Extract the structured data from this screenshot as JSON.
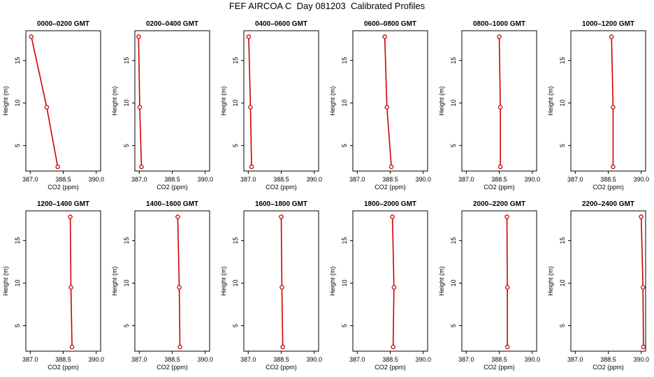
{
  "figure_title": "FEF AIRCOA C  Day 081203  Calibrated Profiles",
  "colors": {
    "profile_line": "#cc0000",
    "axis": "#000000"
  },
  "chart_data": [
    {
      "type": "line",
      "title": "0000–0200 GMT",
      "xlabel": "CO2 (ppm)",
      "ylabel": "Height (m)",
      "xlim": [
        386.8,
        390.2
      ],
      "ylim": [
        2,
        18.5
      ],
      "xticks": [
        "387.0",
        "388.5",
        "390.0"
      ],
      "yticks": [
        "5",
        "10",
        "15"
      ],
      "series": [
        {
          "x": [
            388.25,
            387.75,
            387.05
          ],
          "y": [
            2.5,
            9.5,
            17.8
          ]
        }
      ]
    },
    {
      "type": "line",
      "title": "0200–0400 GMT",
      "xlabel": "CO2 (ppm)",
      "ylabel": "Height (m)",
      "xlim": [
        386.8,
        390.2
      ],
      "ylim": [
        2,
        18.5
      ],
      "xticks": [
        "387.0",
        "388.5",
        "390.0"
      ],
      "yticks": [
        "5",
        "10",
        "15"
      ],
      "series": [
        {
          "x": [
            387.1,
            387.02,
            386.97
          ],
          "y": [
            2.5,
            9.5,
            17.8
          ]
        }
      ]
    },
    {
      "type": "line",
      "title": "0400–0600 GMT",
      "xlabel": "CO2 (ppm)",
      "ylabel": "Height (m)",
      "xlim": [
        386.8,
        390.2
      ],
      "ylim": [
        2,
        18.5
      ],
      "xticks": [
        "387.0",
        "388.5",
        "390.0"
      ],
      "yticks": [
        "5",
        "10",
        "15"
      ],
      "series": [
        {
          "x": [
            387.15,
            387.1,
            387.02
          ],
          "y": [
            2.5,
            9.5,
            17.8
          ]
        }
      ]
    },
    {
      "type": "line",
      "title": "0600–0800 GMT",
      "xlabel": "CO2 (ppm)",
      "ylabel": "Height (m)",
      "xlim": [
        386.8,
        390.2
      ],
      "ylim": [
        2,
        18.5
      ],
      "xticks": [
        "387.0",
        "388.5",
        "390.0"
      ],
      "yticks": [
        "5",
        "10",
        "15"
      ],
      "series": [
        {
          "x": [
            388.55,
            388.35,
            388.25
          ],
          "y": [
            2.5,
            9.5,
            17.8
          ]
        }
      ]
    },
    {
      "type": "line",
      "title": "0800–1000 GMT",
      "xlabel": "CO2 (ppm)",
      "ylabel": "Height (m)",
      "xlim": [
        386.8,
        390.2
      ],
      "ylim": [
        2,
        18.5
      ],
      "xticks": [
        "387.0",
        "388.5",
        "390.0"
      ],
      "yticks": [
        "5",
        "10",
        "15"
      ],
      "series": [
        {
          "x": [
            388.55,
            388.55,
            388.5
          ],
          "y": [
            2.5,
            9.5,
            17.8
          ]
        }
      ]
    },
    {
      "type": "line",
      "title": "1000–1200 GMT",
      "xlabel": "CO2 (ppm)",
      "ylabel": "Height (m)",
      "xlim": [
        386.8,
        390.2
      ],
      "ylim": [
        2,
        18.5
      ],
      "xticks": [
        "387.0",
        "388.5",
        "390.0"
      ],
      "yticks": [
        "5",
        "10",
        "15"
      ],
      "series": [
        {
          "x": [
            388.72,
            388.72,
            388.65
          ],
          "y": [
            2.5,
            9.5,
            17.8
          ]
        }
      ]
    },
    {
      "type": "line",
      "title": "1200–1400 GMT",
      "xlabel": "CO2 (ppm)",
      "ylabel": "Height (m)",
      "xlim": [
        386.8,
        390.2
      ],
      "ylim": [
        2,
        18.5
      ],
      "xticks": [
        "387.0",
        "388.5",
        "390.0"
      ],
      "yticks": [
        "5",
        "10",
        "15"
      ],
      "series": [
        {
          "x": [
            388.9,
            388.85,
            388.82
          ],
          "y": [
            2.5,
            9.5,
            17.8
          ]
        }
      ]
    },
    {
      "type": "line",
      "title": "1400–1600 GMT",
      "xlabel": "CO2 (ppm)",
      "ylabel": "Height (m)",
      "xlim": [
        386.8,
        390.2
      ],
      "ylim": [
        2,
        18.5
      ],
      "xticks": [
        "387.0",
        "388.5",
        "390.0"
      ],
      "yticks": [
        "5",
        "10",
        "15"
      ],
      "series": [
        {
          "x": [
            388.85,
            388.82,
            388.75
          ],
          "y": [
            2.5,
            9.5,
            17.8
          ]
        }
      ]
    },
    {
      "type": "line",
      "title": "1600–1800 GMT",
      "xlabel": "CO2 (ppm)",
      "ylabel": "Height (m)",
      "xlim": [
        386.8,
        390.2
      ],
      "ylim": [
        2,
        18.5
      ],
      "xticks": [
        "387.0",
        "388.5",
        "390.0"
      ],
      "yticks": [
        "5",
        "10",
        "15"
      ],
      "series": [
        {
          "x": [
            388.57,
            388.53,
            388.5
          ],
          "y": [
            2.5,
            9.5,
            17.8
          ]
        }
      ]
    },
    {
      "type": "line",
      "title": "1800–2000 GMT",
      "xlabel": "CO2 (ppm)",
      "ylabel": "Height (m)",
      "xlim": [
        386.8,
        390.2
      ],
      "ylim": [
        2,
        18.5
      ],
      "xticks": [
        "387.0",
        "388.5",
        "390.0"
      ],
      "yticks": [
        "5",
        "10",
        "15"
      ],
      "series": [
        {
          "x": [
            388.63,
            388.67,
            388.6
          ],
          "y": [
            2.5,
            9.5,
            17.8
          ]
        }
      ]
    },
    {
      "type": "line",
      "title": "2000–2200 GMT",
      "xlabel": "CO2 (ppm)",
      "ylabel": "Height (m)",
      "xlim": [
        386.8,
        390.2
      ],
      "ylim": [
        2,
        18.5
      ],
      "xticks": [
        "387.0",
        "388.5",
        "390.0"
      ],
      "yticks": [
        "5",
        "10",
        "15"
      ],
      "series": [
        {
          "x": [
            388.87,
            388.87,
            388.85
          ],
          "y": [
            2.5,
            9.5,
            17.8
          ]
        }
      ]
    },
    {
      "type": "line",
      "title": "2200–2400 GMT",
      "xlabel": "CO2 (ppm)",
      "ylabel": "Height (m)",
      "xlim": [
        386.8,
        390.2
      ],
      "ylim": [
        2,
        18.5
      ],
      "xticks": [
        "387.0",
        "388.5",
        "390.0"
      ],
      "yticks": [
        "5",
        "10",
        "15"
      ],
      "series": [
        {
          "x": [
            390.1,
            390.08,
            390.0
          ],
          "y": [
            2.5,
            9.5,
            17.8
          ]
        }
      ]
    }
  ]
}
